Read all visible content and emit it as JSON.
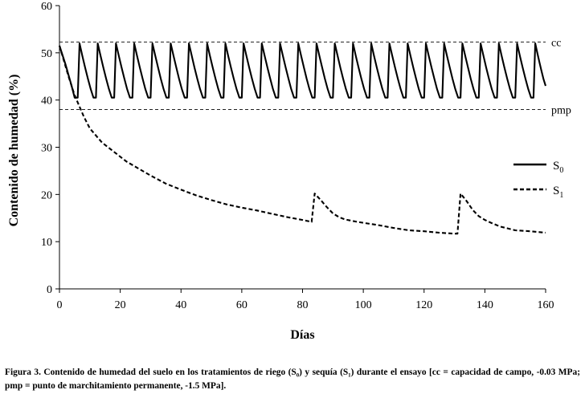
{
  "chart_data": {
    "type": "line",
    "xlabel": "Días",
    "ylabel": "Contenido de humedad (%)",
    "xlim": [
      0,
      160
    ],
    "ylim": [
      0,
      60
    ],
    "xticks": [
      0,
      20,
      40,
      60,
      80,
      100,
      120,
      140,
      160
    ],
    "yticks": [
      0,
      10,
      20,
      30,
      40,
      50,
      60
    ],
    "grid": false,
    "legend_position": "right",
    "reference_lines": [
      {
        "label": "cc",
        "y": 52.3,
        "style": "dashed"
      },
      {
        "label": "pmp",
        "y": 38,
        "style": "dashed"
      }
    ],
    "series": [
      {
        "name": "S",
        "subscript": "0",
        "style": "solid",
        "irrigation_days": [
          6,
          12,
          18,
          24,
          30,
          36,
          42,
          48,
          54,
          60,
          66,
          72,
          78,
          84,
          90,
          96,
          102,
          108,
          114,
          120,
          126,
          132,
          138,
          144,
          150,
          156
        ],
        "peak": 52,
        "trough": 40.5,
        "points": [
          [
            0,
            51.5
          ],
          [
            5,
            40.5
          ],
          [
            160,
            43
          ]
        ]
      },
      {
        "name": "S",
        "subscript": "1",
        "style": "dashed",
        "points": [
          [
            0,
            51.5
          ],
          [
            3,
            45
          ],
          [
            5,
            41
          ],
          [
            8,
            36.5
          ],
          [
            10,
            34
          ],
          [
            14,
            31
          ],
          [
            18,
            29
          ],
          [
            22,
            27
          ],
          [
            26,
            25.5
          ],
          [
            30,
            24
          ],
          [
            35,
            22.3
          ],
          [
            40,
            21
          ],
          [
            45,
            19.8
          ],
          [
            50,
            18.8
          ],
          [
            55,
            17.9
          ],
          [
            60,
            17.2
          ],
          [
            65,
            16.6
          ],
          [
            70,
            15.9
          ],
          [
            75,
            15.2
          ],
          [
            80,
            14.6
          ],
          [
            83,
            14.2
          ],
          [
            84,
            20.2
          ],
          [
            86,
            18.8
          ],
          [
            88,
            17.3
          ],
          [
            90,
            16
          ],
          [
            92,
            15.2
          ],
          [
            94,
            14.7
          ],
          [
            98,
            14.2
          ],
          [
            105,
            13.5
          ],
          [
            110,
            12.9
          ],
          [
            115,
            12.4
          ],
          [
            120,
            12.2
          ],
          [
            125,
            11.9
          ],
          [
            130,
            11.7
          ],
          [
            131,
            11.7
          ],
          [
            132,
            20.2
          ],
          [
            134,
            18.6
          ],
          [
            136,
            16.7
          ],
          [
            138,
            15.4
          ],
          [
            140,
            14.6
          ],
          [
            142,
            14
          ],
          [
            145,
            13.2
          ],
          [
            150,
            12.4
          ],
          [
            155,
            12.2
          ],
          [
            160,
            11.9
          ]
        ]
      }
    ]
  },
  "caption": "Figura 3. Contenido de humedad del suelo en los tratamientos de riego (S₀) y sequía (S₁) durante el ensayo [cc = capacidad de campo, -0.03 MPa; pmp = punto de marchitamiento permanente, -1.5 MPa]."
}
